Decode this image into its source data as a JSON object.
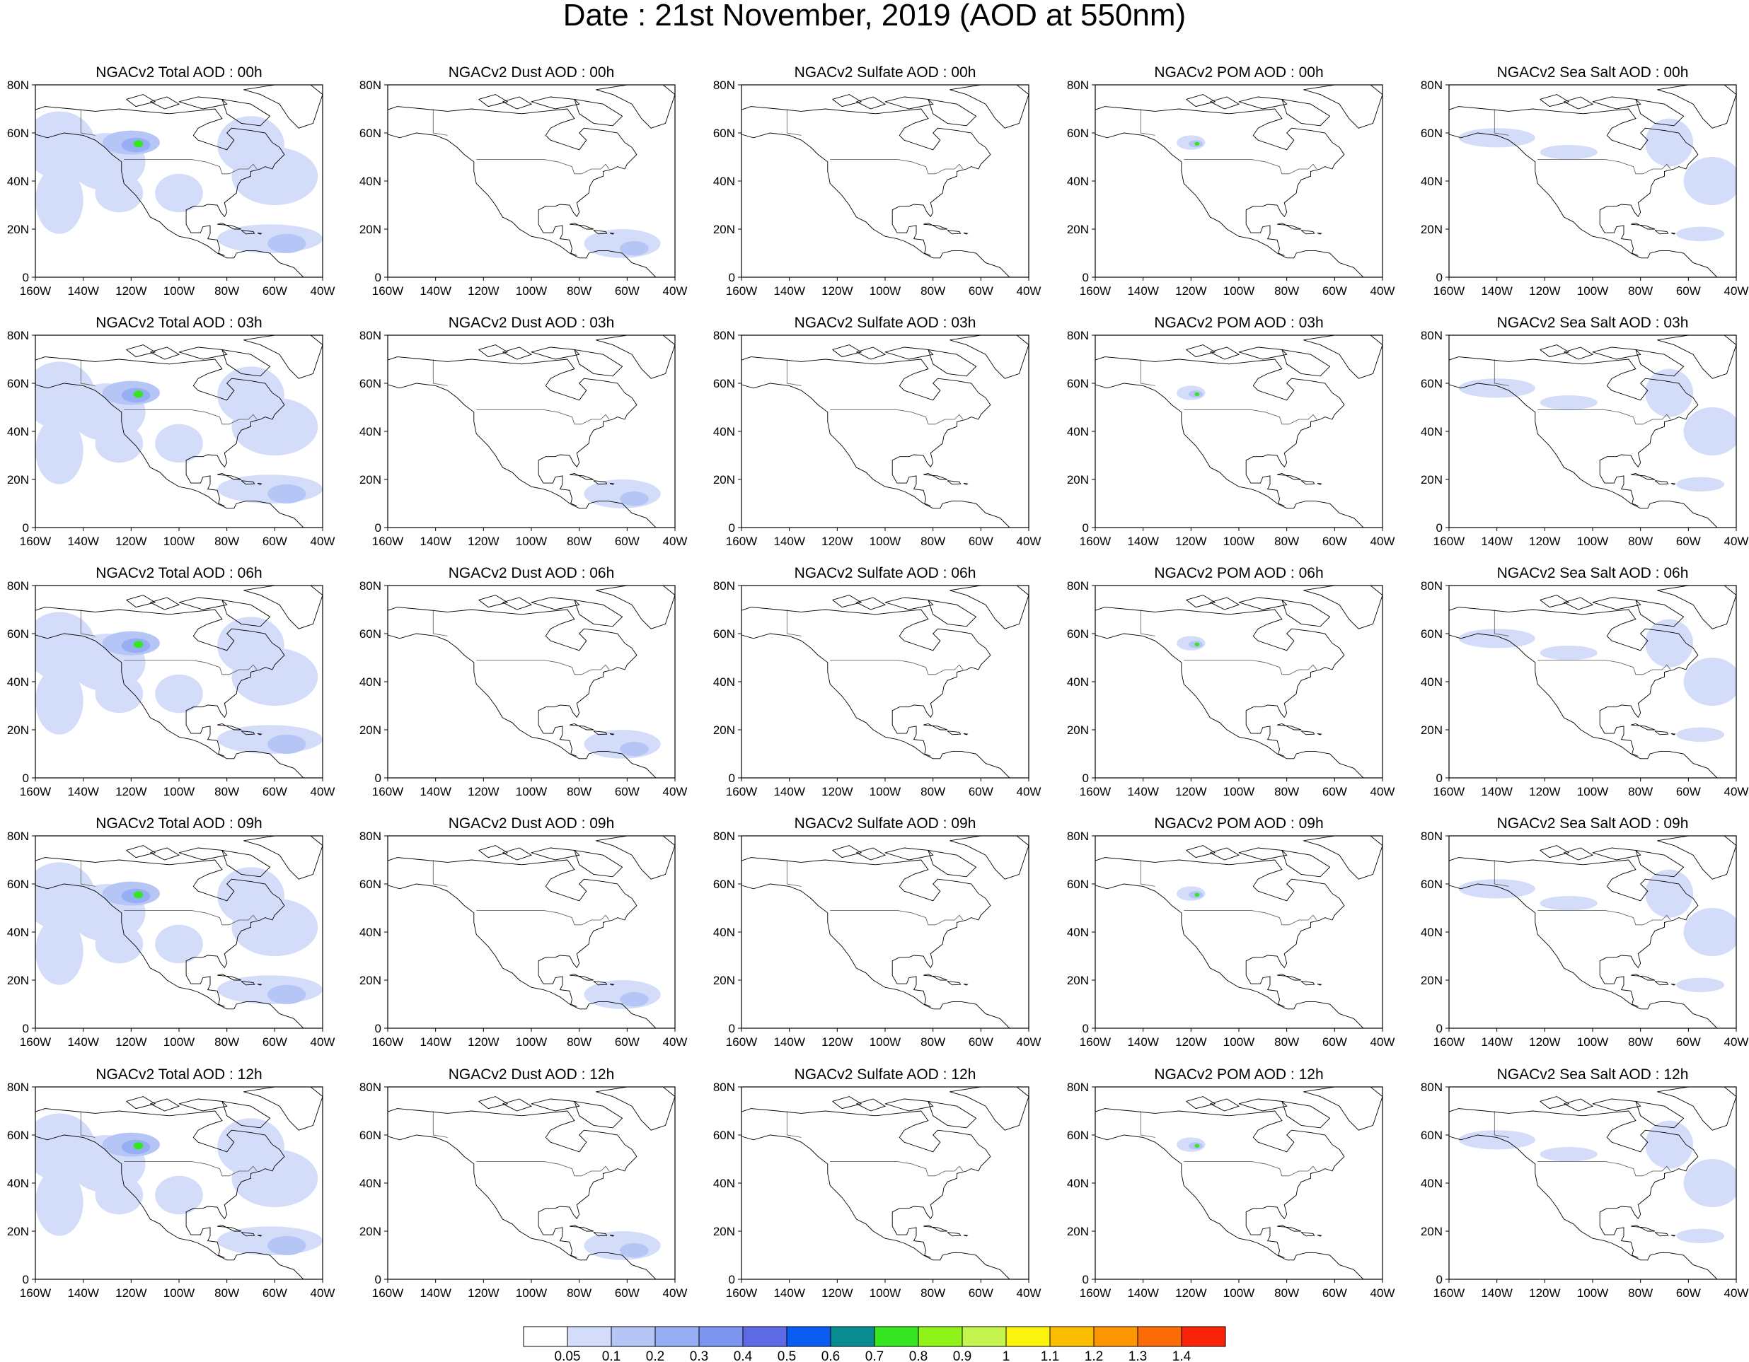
{
  "title": "Date : 21st November, 2019 (AOD at 550nm)",
  "columns": [
    "Total",
    "Dust",
    "Sulfate",
    "POM",
    "Sea Salt"
  ],
  "rows": [
    "00h",
    "03h",
    "06h",
    "09h",
    "12h"
  ],
  "panel_titles": [
    [
      "NGACv2 Total AOD : 00h",
      "NGACv2 Dust AOD : 00h",
      "NGACv2 Sulfate AOD : 00h",
      "NGACv2 POM AOD : 00h",
      "NGACv2 Sea Salt AOD : 00h"
    ],
    [
      "NGACv2 Total AOD : 03h",
      "NGACv2 Dust AOD : 03h",
      "NGACv2 Sulfate AOD : 03h",
      "NGACv2 POM AOD : 03h",
      "NGACv2 Sea Salt AOD : 03h"
    ],
    [
      "NGACv2 Total AOD : 06h",
      "NGACv2 Dust AOD : 06h",
      "NGACv2 Sulfate AOD : 06h",
      "NGACv2 POM AOD : 06h",
      "NGACv2 Sea Salt AOD : 06h"
    ],
    [
      "NGACv2 Total AOD : 09h",
      "NGACv2 Dust AOD : 09h",
      "NGACv2 Sulfate AOD : 09h",
      "NGACv2 POM AOD : 09h",
      "NGACv2 Sea Salt  AOD : 09h"
    ],
    [
      "NGACv2 Total AOD  : 12h",
      "NGACv2 Dust AOD : 12h",
      "NGACv2 Sulfate AOD : 12h",
      "NGACv2 POM  AOD : 12h",
      "NGACv2 Sea Salt  AOD : 12h"
    ]
  ],
  "lon_ticks": [
    "160W",
    "140W",
    "120W",
    "100W",
    "80W",
    "60W",
    "40W"
  ],
  "lat_ticks": [
    "0",
    "20N",
    "40N",
    "60N",
    "80N"
  ],
  "lon_range": [
    -160,
    -40
  ],
  "lat_range": [
    0,
    80
  ],
  "colorbar": {
    "levels": [
      "0.05",
      "0.1",
      "0.2",
      "0.3",
      "0.4",
      "0.5",
      "0.6",
      "0.7",
      "0.8",
      "0.9",
      "1",
      "1.1",
      "1.2",
      "1.3",
      "1.4"
    ],
    "colors": [
      "#ffffff",
      "#d3ddfa",
      "#b4c5f6",
      "#96aff4",
      "#7c96ef",
      "#5e69e6",
      "#0b5cf0",
      "#078d8f",
      "#36e621",
      "#8ff218",
      "#c5f44f",
      "#fbf40a",
      "#fbbe00",
      "#fb9500",
      "#fb6c08",
      "#fb220a"
    ]
  },
  "shading": {
    "low": "#d3ddfa",
    "mid": "#b4c5f6",
    "high": "#96aff4",
    "peak1": "#36e621",
    "peak2": "#fbf40a"
  }
}
